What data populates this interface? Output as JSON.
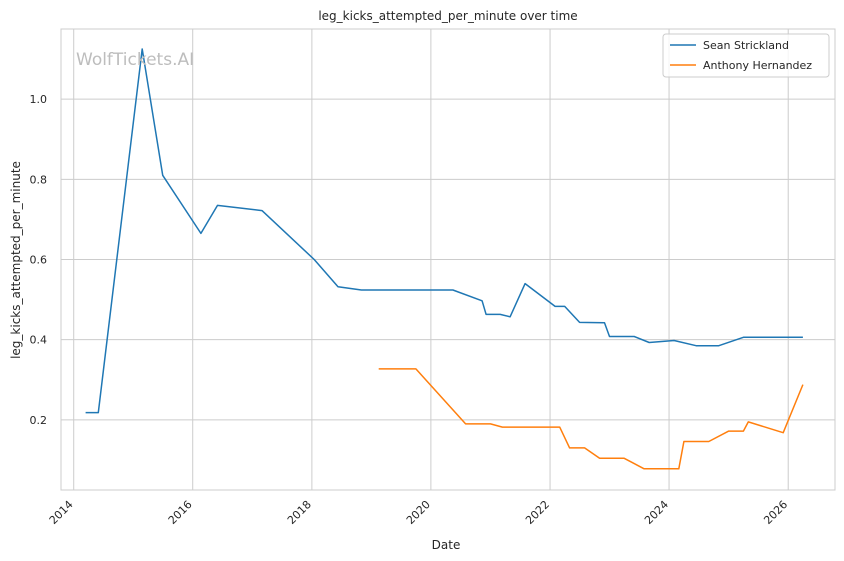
{
  "chart_data": {
    "type": "line",
    "title": "leg_kicks_attempted_per_minute over time",
    "xlabel": "Date",
    "ylabel": "leg_kicks_attempted_per_minute",
    "watermark": "WolfTickets.AI",
    "xlim": [
      "2013-10-15",
      "2026-10-15"
    ],
    "ylim": [
      0.025,
      1.175
    ],
    "x_ticks": [
      "2014",
      "2016",
      "2018",
      "2020",
      "2022",
      "2024",
      "2026"
    ],
    "y_ticks": [
      "0.2",
      "0.4",
      "0.6",
      "0.8",
      "1.0"
    ],
    "grid": true,
    "legend_position": "top-right",
    "series": [
      {
        "name": "Sean Strickland",
        "color": "#1f77b4",
        "points": [
          [
            "2014-03-15",
            0.218
          ],
          [
            "2014-06-01",
            0.218
          ],
          [
            "2015-02-25",
            1.125
          ],
          [
            "2015-07-01",
            0.81
          ],
          [
            "2016-02-20",
            0.665
          ],
          [
            "2016-06-01",
            0.735
          ],
          [
            "2017-03-01",
            0.722
          ],
          [
            "2018-01-15",
            0.6
          ],
          [
            "2018-06-10",
            0.532
          ],
          [
            "2018-11-01",
            0.524
          ],
          [
            "2020-05-15",
            0.524
          ],
          [
            "2020-11-10",
            0.497
          ],
          [
            "2020-12-05",
            0.463
          ],
          [
            "2021-03-01",
            0.463
          ],
          [
            "2021-05-01",
            0.457
          ],
          [
            "2021-08-01",
            0.54
          ],
          [
            "2022-02-01",
            0.483
          ],
          [
            "2022-04-01",
            0.483
          ],
          [
            "2022-07-01",
            0.443
          ],
          [
            "2022-12-01",
            0.442
          ],
          [
            "2023-01-01",
            0.408
          ],
          [
            "2023-06-01",
            0.408
          ],
          [
            "2023-09-01",
            0.393
          ],
          [
            "2024-02-01",
            0.398
          ],
          [
            "2024-06-15",
            0.385
          ],
          [
            "2024-11-01",
            0.385
          ],
          [
            "2025-04-01",
            0.406
          ],
          [
            "2026-04-01",
            0.406
          ]
        ]
      },
      {
        "name": "Anthony Hernandez",
        "color": "#ff7f0e",
        "points": [
          [
            "2019-02-15",
            0.327
          ],
          [
            "2019-10-01",
            0.327
          ],
          [
            "2020-08-01",
            0.19
          ],
          [
            "2021-01-01",
            0.19
          ],
          [
            "2021-03-15",
            0.182
          ],
          [
            "2022-03-01",
            0.182
          ],
          [
            "2022-05-01",
            0.13
          ],
          [
            "2022-08-01",
            0.13
          ],
          [
            "2022-11-01",
            0.104
          ],
          [
            "2023-04-01",
            0.104
          ],
          [
            "2023-08-01",
            0.078
          ],
          [
            "2024-03-01",
            0.078
          ],
          [
            "2024-04-01",
            0.146
          ],
          [
            "2024-09-01",
            0.146
          ],
          [
            "2025-01-01",
            0.172
          ],
          [
            "2025-04-01",
            0.172
          ],
          [
            "2025-05-01",
            0.195
          ],
          [
            "2025-12-01",
            0.168
          ],
          [
            "2026-04-01",
            0.288
          ]
        ]
      }
    ]
  }
}
